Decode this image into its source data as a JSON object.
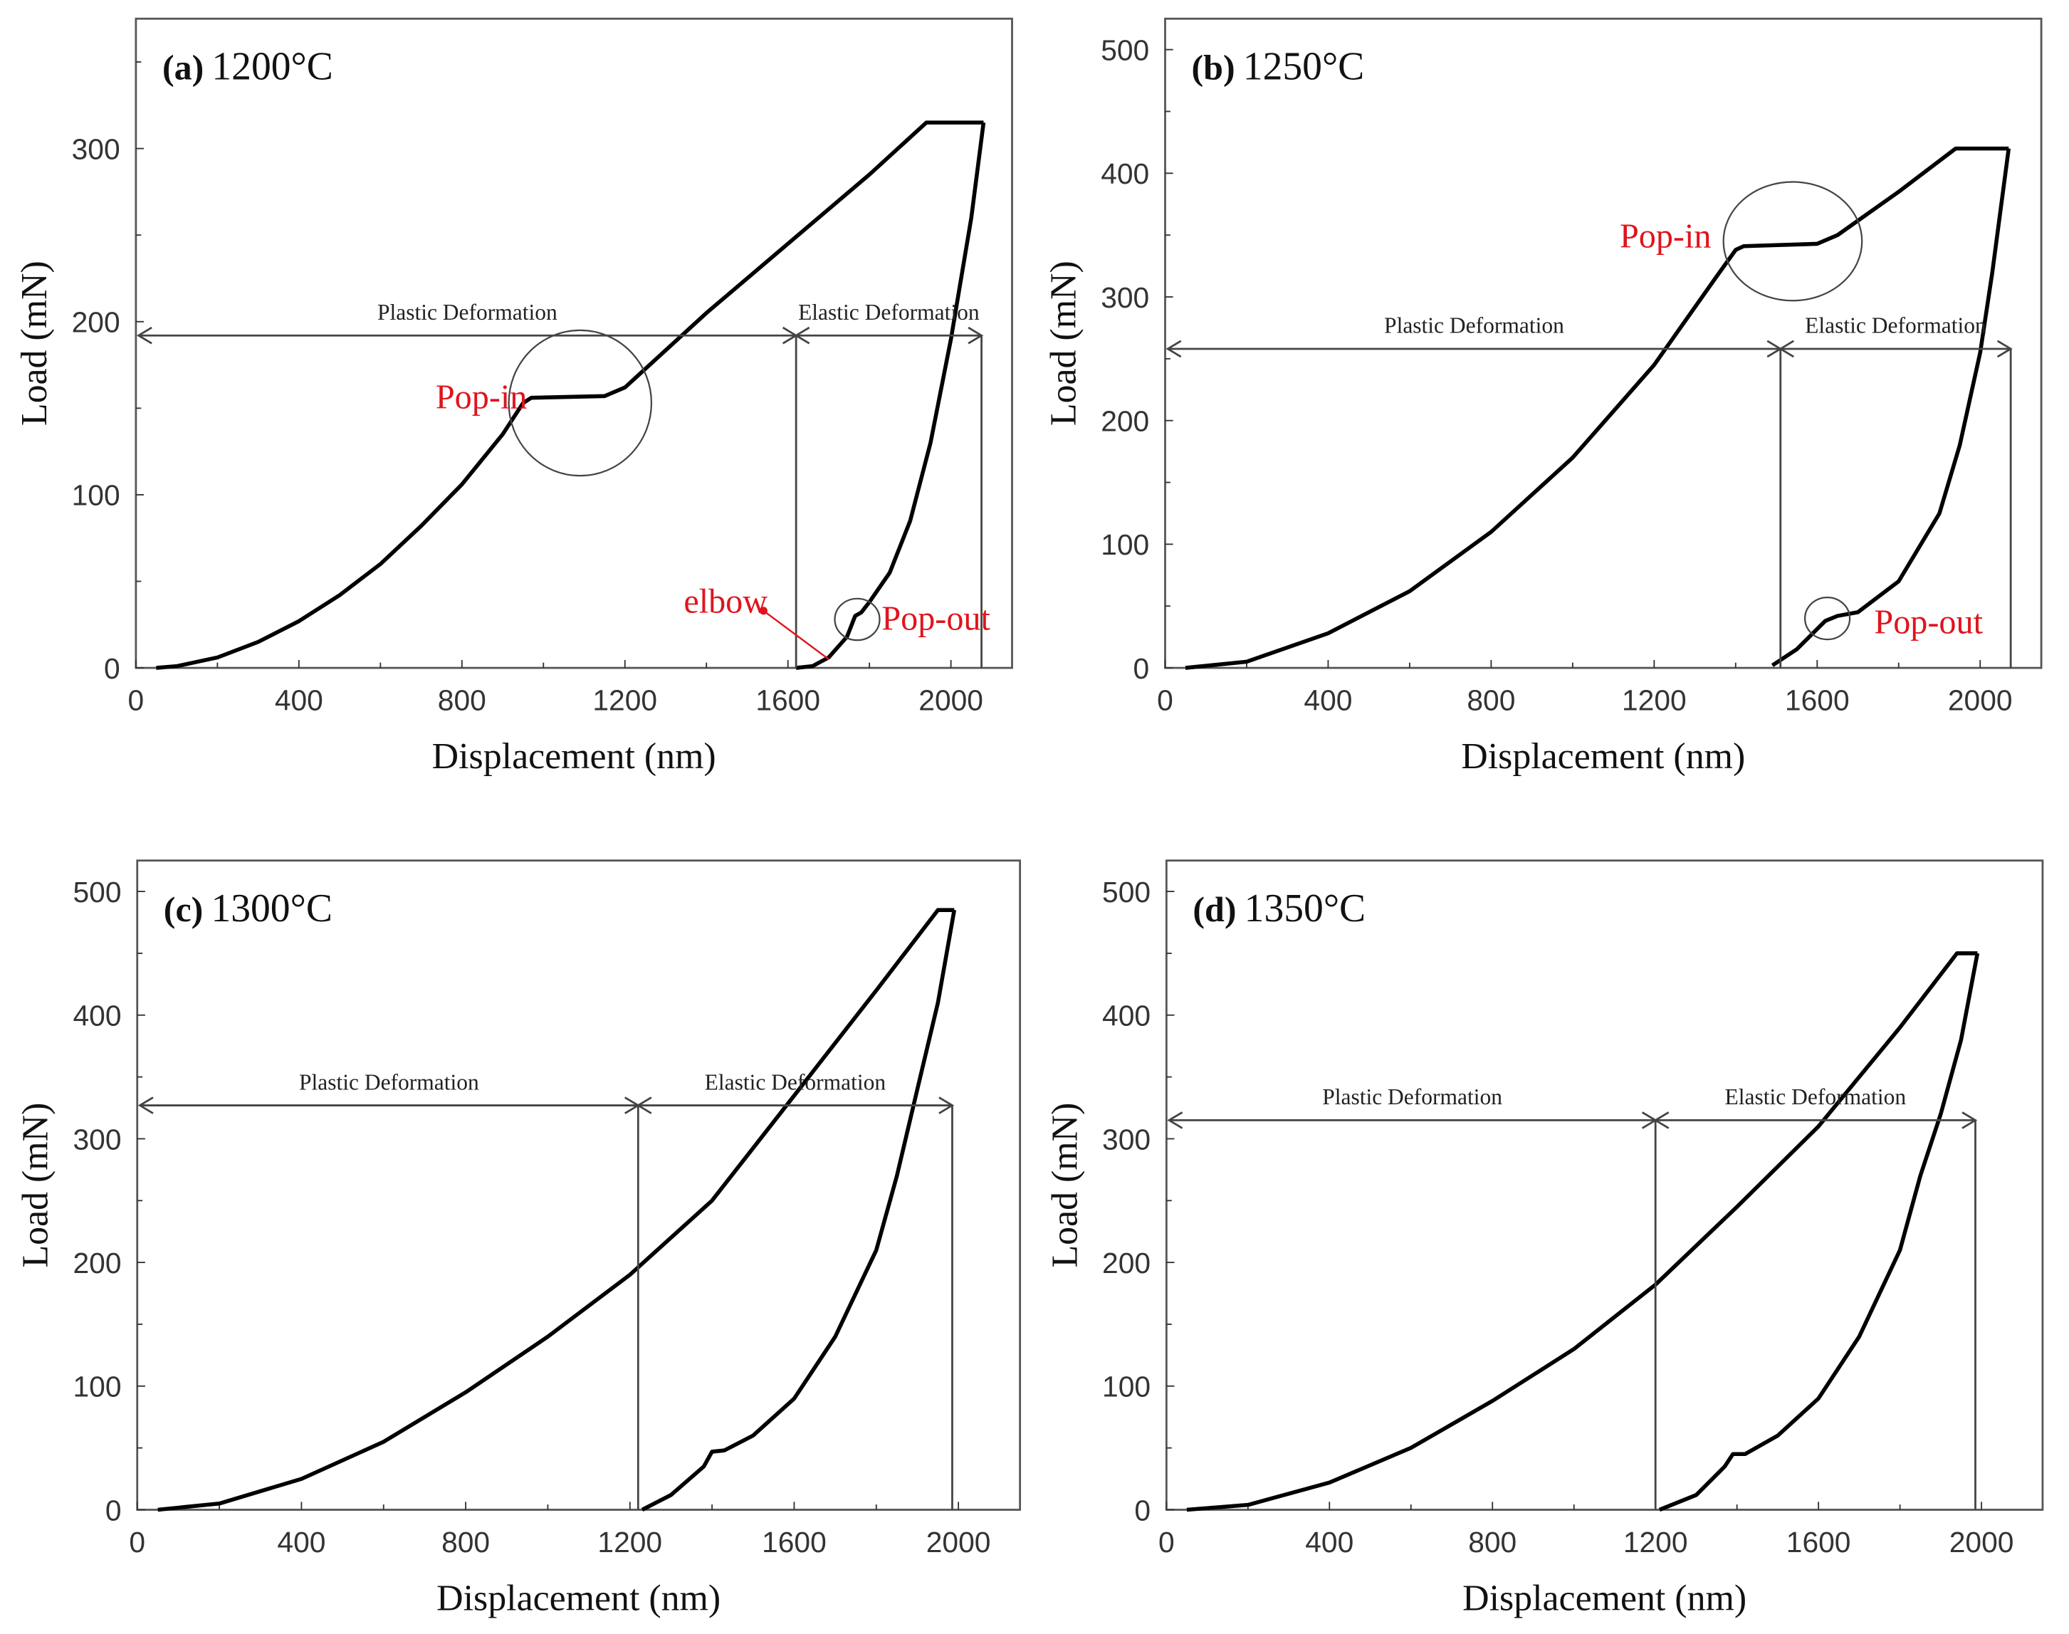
{
  "colors": {
    "curve": "#000000",
    "annotation_red": "#e0141e",
    "frame": "#555555"
  },
  "chart_data": [
    {
      "type": "line",
      "panel": "(a)",
      "title": "1200°C",
      "xlabel": "Displacement (nm)",
      "ylabel": "Load (mN)",
      "xlim": [
        0,
        2150
      ],
      "ylim": [
        0,
        375
      ],
      "xticks": [
        0,
        400,
        800,
        1200,
        1600,
        2000
      ],
      "yticks": [
        0,
        100,
        200,
        300
      ],
      "series": [
        {
          "name": "loading",
          "x": [
            50,
            100,
            200,
            300,
            400,
            500,
            600,
            700,
            800,
            900,
            950,
            970,
            1150,
            1200,
            1400,
            1600,
            1800,
            1940,
            2080
          ],
          "y": [
            0,
            1,
            6,
            15,
            27,
            42,
            60,
            82,
            106,
            135,
            153,
            156,
            157,
            162,
            205,
            245,
            285,
            315,
            315
          ]
        },
        {
          "name": "unloading",
          "x": [
            2080,
            2050,
            2000,
            1950,
            1900,
            1850,
            1800,
            1780,
            1765,
            1745,
            1700,
            1660,
            1620
          ],
          "y": [
            315,
            260,
            190,
            130,
            85,
            55,
            38,
            32,
            30,
            18,
            6,
            1,
            0
          ]
        }
      ],
      "annotations": {
        "plastic": "Plastic Deformation",
        "elastic": "Elastic Deformation",
        "pop_in": "Pop-in",
        "pop_out": "Pop-out",
        "elbow": "elbow"
      },
      "boundary_x": 1620,
      "max_x": 2075,
      "arrow_y": 192
    },
    {
      "type": "line",
      "panel": "(b)",
      "title": "1250°C",
      "xlabel": "Displacement (nm)",
      "ylabel": "Load (mN)",
      "xlim": [
        0,
        2150
      ],
      "ylim": [
        0,
        525
      ],
      "xticks": [
        0,
        400,
        800,
        1200,
        1600,
        2000
      ],
      "yticks": [
        0,
        100,
        200,
        300,
        400,
        500
      ],
      "series": [
        {
          "name": "loading",
          "x": [
            50,
            200,
            400,
            600,
            800,
            1000,
            1200,
            1350,
            1400,
            1420,
            1600,
            1650,
            1800,
            1940,
            2070
          ],
          "y": [
            0,
            5,
            28,
            62,
            110,
            170,
            245,
            315,
            338,
            341,
            343,
            350,
            385,
            420,
            420
          ]
        },
        {
          "name": "unloading",
          "x": [
            2070,
            2030,
            2000,
            1950,
            1900,
            1800,
            1700,
            1650,
            1620,
            1550,
            1490
          ],
          "y": [
            420,
            320,
            255,
            180,
            125,
            70,
            45,
            42,
            38,
            15,
            2
          ]
        }
      ],
      "annotations": {
        "plastic": "Plastic Deformation",
        "elastic": "Elastic Deformation",
        "pop_in": "Pop-in",
        "pop_out": "Pop-out"
      },
      "boundary_x": 1510,
      "max_x": 2075,
      "arrow_y": 258
    },
    {
      "type": "line",
      "panel": "(c)",
      "title": "1300°C",
      "xlabel": "Displacement (nm)",
      "ylabel": "Load (mN)",
      "xlim": [
        0,
        2150
      ],
      "ylim": [
        0,
        525
      ],
      "xticks": [
        0,
        400,
        800,
        1200,
        1600,
        2000
      ],
      "yticks": [
        0,
        100,
        200,
        300,
        400,
        500
      ],
      "series": [
        {
          "name": "loading",
          "x": [
            50,
            200,
            400,
            600,
            800,
            1000,
            1200,
            1400,
            1600,
            1800,
            1950,
            1990
          ],
          "y": [
            0,
            5,
            25,
            55,
            95,
            140,
            190,
            250,
            335,
            420,
            485,
            485
          ]
        },
        {
          "name": "unloading",
          "x": [
            1990,
            1950,
            1900,
            1850,
            1800,
            1700,
            1600,
            1500,
            1430,
            1400,
            1380,
            1300,
            1230
          ],
          "y": [
            485,
            410,
            340,
            270,
            210,
            140,
            90,
            60,
            48,
            47,
            35,
            12,
            0
          ]
        }
      ],
      "annotations": {
        "plastic": "Plastic Deformation",
        "elastic": "Elastic Deformation"
      },
      "boundary_x": 1220,
      "max_x": 1985,
      "arrow_y": 327
    },
    {
      "type": "line",
      "panel": "(d)",
      "title": "1350°C",
      "xlabel": "Displacement (nm)",
      "ylabel": "Load (mN)",
      "xlim": [
        0,
        2150
      ],
      "ylim": [
        0,
        525
      ],
      "xticks": [
        0,
        400,
        800,
        1200,
        1600,
        2000
      ],
      "yticks": [
        0,
        100,
        200,
        300,
        400,
        500
      ],
      "series": [
        {
          "name": "loading",
          "x": [
            50,
            200,
            400,
            600,
            800,
            1000,
            1200,
            1400,
            1600,
            1800,
            1940,
            1990
          ],
          "y": [
            0,
            4,
            22,
            50,
            88,
            130,
            182,
            245,
            310,
            390,
            450,
            450
          ]
        },
        {
          "name": "unloading",
          "x": [
            1990,
            1950,
            1900,
            1850,
            1800,
            1700,
            1600,
            1500,
            1420,
            1390,
            1370,
            1300,
            1210
          ],
          "y": [
            450,
            380,
            320,
            270,
            210,
            140,
            90,
            60,
            45,
            45,
            35,
            12,
            0
          ]
        }
      ],
      "annotations": {
        "plastic": "Plastic Deformation",
        "elastic": "Elastic Deformation"
      },
      "boundary_x": 1200,
      "max_x": 1985,
      "arrow_y": 315
    }
  ]
}
